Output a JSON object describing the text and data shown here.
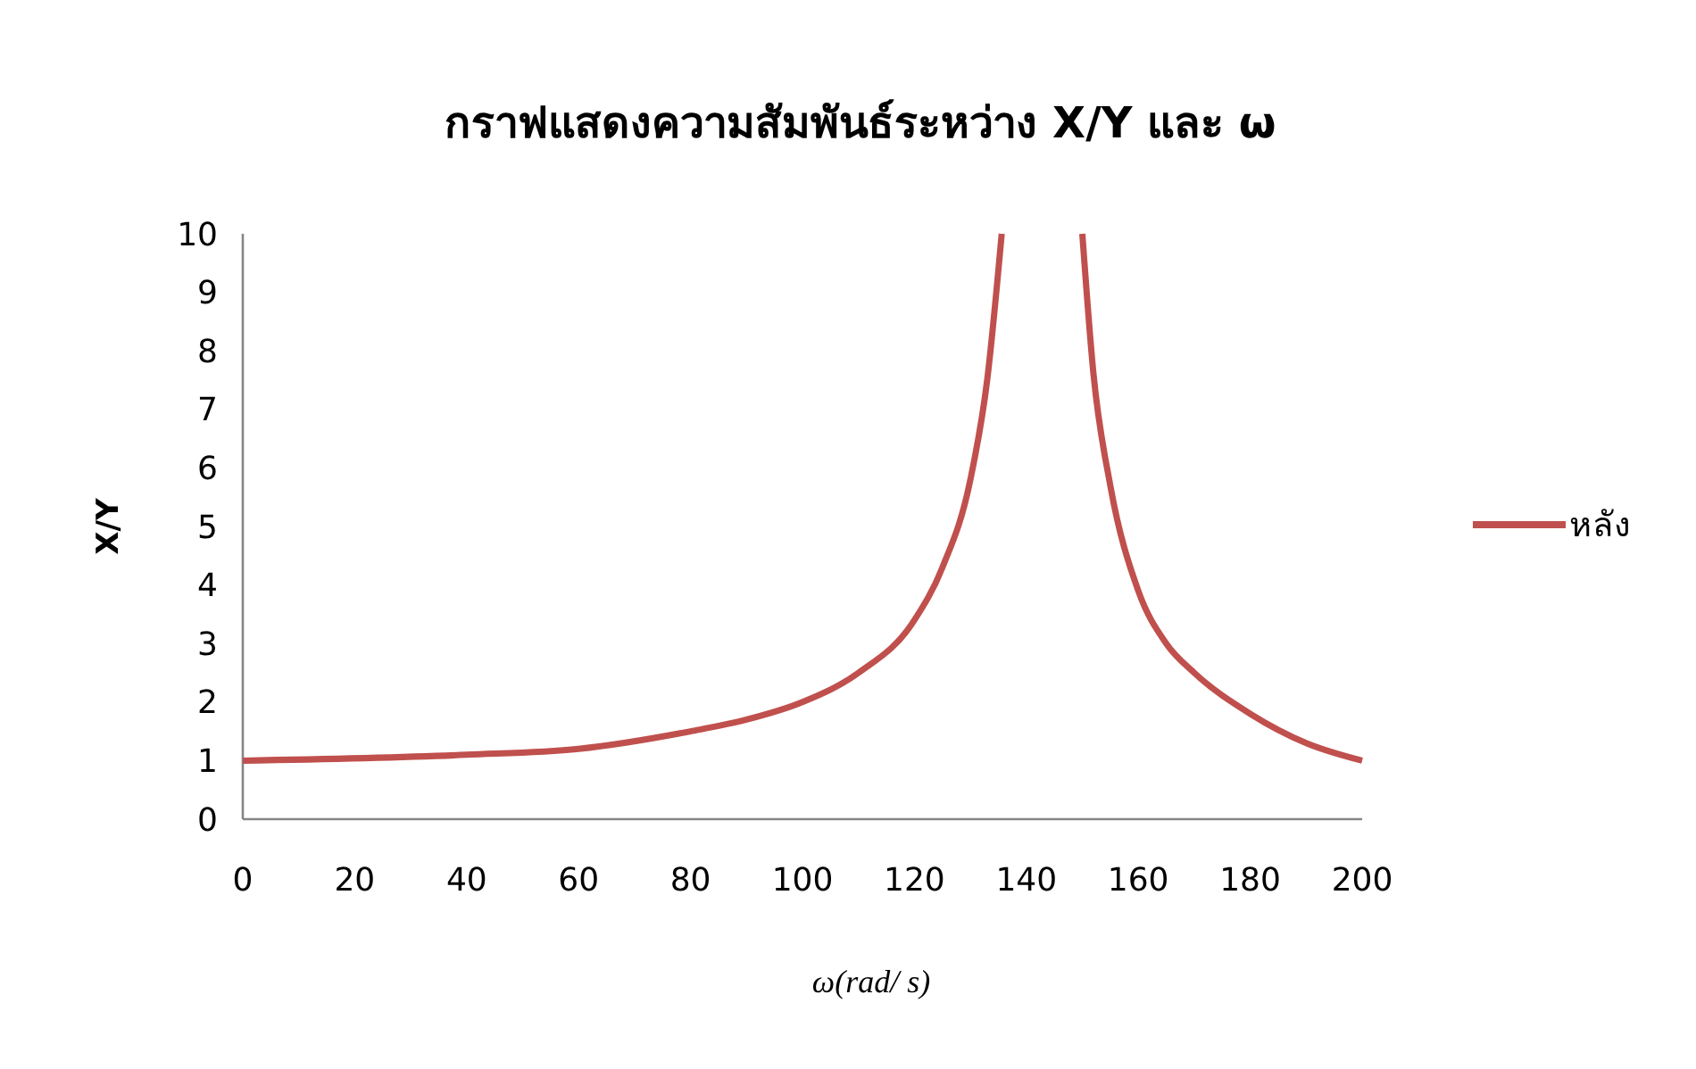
{
  "chart_data": {
    "type": "line",
    "title": "กราฟแสดงความสัมพันธ์ระหว่าง  X/Y และ ω",
    "xlabel": "ω(rad/ s)",
    "ylabel": "X/Y",
    "xlim": [
      0,
      200
    ],
    "ylim": [
      0,
      10
    ],
    "xticks": [
      0,
      20,
      40,
      60,
      80,
      100,
      120,
      140,
      160,
      180,
      200
    ],
    "yticks": [
      0,
      1,
      2,
      3,
      4,
      5,
      6,
      7,
      8,
      9,
      10
    ],
    "grid": false,
    "legend": "right",
    "series": [
      {
        "name": "หลัง",
        "color": "#c0504d",
        "x": [
          0,
          40,
          60,
          80,
          90,
          100,
          110,
          120,
          125,
          130,
          133,
          135.6,
          143,
          150,
          152,
          155,
          160,
          165,
          170,
          180,
          190,
          200
        ],
        "values": [
          1.0,
          1.1,
          1.2,
          1.5,
          1.7,
          2.0,
          2.5,
          3.4,
          4.3,
          5.8,
          7.5,
          10,
          null,
          10,
          7.6,
          5.7,
          3.9,
          3.0,
          2.5,
          1.8,
          1.3,
          1.0
        ]
      }
    ]
  }
}
